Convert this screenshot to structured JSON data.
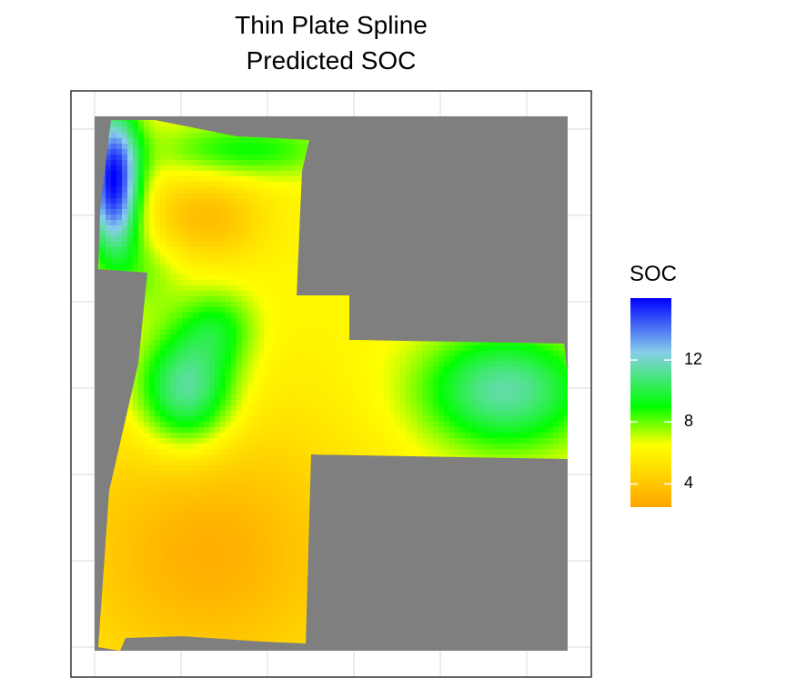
{
  "chart_data": {
    "type": "heatmap",
    "title_lines": [
      "Thin Plate Spline",
      "Predicted SOC"
    ],
    "xlabel": "",
    "ylabel": "",
    "grid": true,
    "background": "#7f7f7f",
    "legend": {
      "title": "SOC",
      "placement": "right",
      "range": [
        2.5,
        16
      ],
      "ticks": [
        4,
        8,
        12
      ],
      "color_stops": [
        {
          "value": 2.5,
          "color": "#ffa500"
        },
        {
          "value": 6.5,
          "color": "#ffff00"
        },
        {
          "value": 9.0,
          "color": "#00ff00"
        },
        {
          "value": 12.5,
          "color": "#87ceeb"
        },
        {
          "value": 16.0,
          "color": "#0000ff"
        }
      ]
    },
    "field_value_features": [
      {
        "kind": "high",
        "value": 16.0,
        "where": "northwest edge strip"
      },
      {
        "kind": "low",
        "value": 3.5,
        "where": "upper-left interior"
      },
      {
        "kind": "high",
        "value": 12.0,
        "where": "center-left hotspot"
      },
      {
        "kind": "high",
        "value": 11.5,
        "where": "east arm"
      },
      {
        "kind": "low",
        "value": 3.0,
        "where": "southern section"
      },
      {
        "kind": "background",
        "value": 6.2,
        "where": "remainder of field"
      }
    ]
  }
}
